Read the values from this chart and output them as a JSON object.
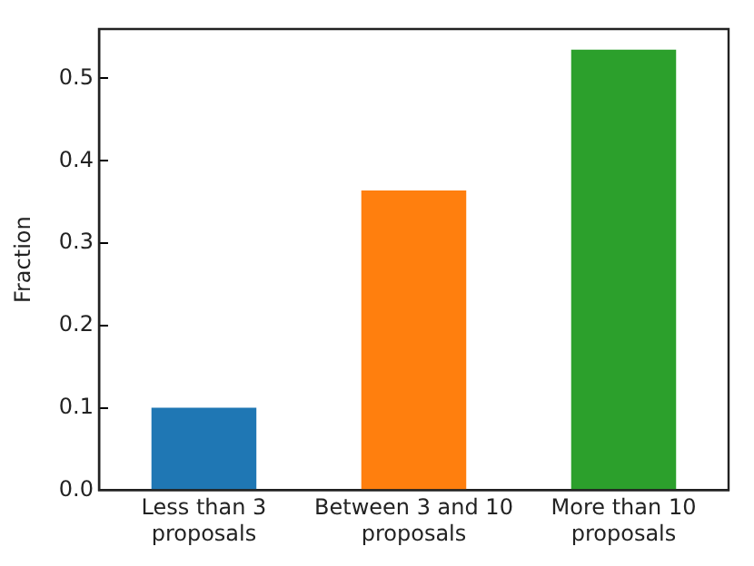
{
  "chart_data": {
    "type": "bar",
    "ylabel": "Fraction",
    "categories": [
      "Less than 3\nproposals",
      "Between 3 and 10\nproposals",
      "More than 10\nproposals"
    ],
    "values": [
      0.1,
      0.364,
      0.535
    ],
    "colors": [
      "#1f77b4",
      "#ff7f0e",
      "#2ca02c"
    ],
    "ylim": [
      0,
      0.56
    ],
    "yticks": [
      {
        "value": 0,
        "label": "0.0"
      },
      0.1,
      0.2,
      0.3,
      0.4,
      0.5
    ],
    "grid": false,
    "legend": false
  }
}
